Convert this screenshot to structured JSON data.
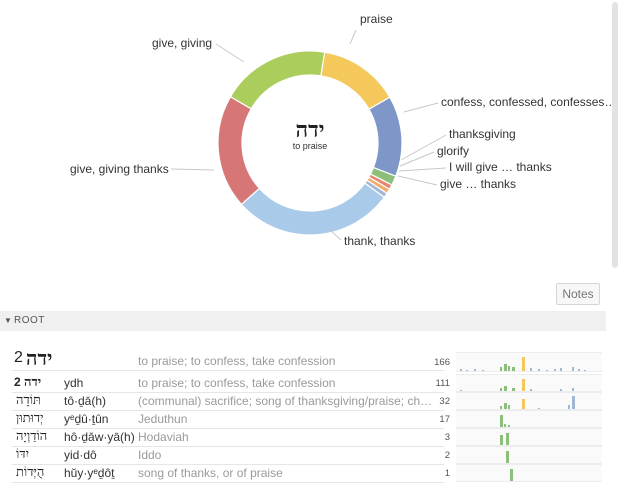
{
  "chart_data": {
    "type": "pie",
    "center_title": "ידה",
    "center_subtitle": "to praise",
    "slices": [
      {
        "label": "praise",
        "value": 17,
        "color": "#f5c85c"
      },
      {
        "label": "confess, confessed, confesses…",
        "value": 17,
        "color": "#7f96c8"
      },
      {
        "label": "thanksgiving",
        "value": 2,
        "color": "#8cc07a"
      },
      {
        "label": "glorify",
        "value": 1,
        "color": "#e3886f"
      },
      {
        "label": "I will give … thanks",
        "value": 1,
        "color": "#f3ab6d"
      },
      {
        "label": "give … thanks",
        "value": 1,
        "color": "#9fb8d6"
      },
      {
        "label": "thank, thanks",
        "value": 34,
        "color": "#a9cbe9"
      },
      {
        "label": "give, giving thanks",
        "value": 24,
        "color": "#d67676"
      },
      {
        "label": "give, giving",
        "value": 23,
        "color": "#aacd5b"
      }
    ]
  },
  "notes_label": "Notes",
  "root_section": {
    "title": "ROOT",
    "header": {
      "word": "ידה",
      "number": "2",
      "gloss": "to praise; to confess, take confession",
      "count": "166"
    },
    "rows": [
      {
        "number": "2",
        "word": "ידה",
        "translit": "ydh",
        "gloss": "to praise; to confess, take confession",
        "count": "111"
      },
      {
        "number": "",
        "word": "תּוֹדָה",
        "translit": "tô·ḏā(h)",
        "gloss": "(communal) sacrifice; song of thanksgiving/praise; cho…",
        "count": "32"
      },
      {
        "number": "",
        "word": "יְדוּתוּן",
        "translit": "yᵉḏû·ṯûn",
        "gloss": "Jeduthun",
        "count": "17"
      },
      {
        "number": "",
        "word": "הוֹדַוְיָה",
        "translit": "hô·ḏǎw·yā(h)",
        "gloss": "Hodaviah",
        "count": "3"
      },
      {
        "number": "",
        "word": "יִדּוֹ",
        "translit": "yid·dô",
        "gloss": "Iddo",
        "count": "2"
      },
      {
        "number": "",
        "word": "הֻיְּדוֹת",
        "translit": "hŭy·yᵉḏôṯ",
        "gloss": "song of thanks, or of praise",
        "count": "1"
      }
    ]
  }
}
